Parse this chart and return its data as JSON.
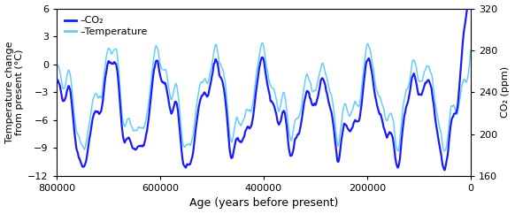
{
  "xlim": [
    800000,
    0
  ],
  "temp_ylim": [
    -12,
    6
  ],
  "co2_ylim": [
    160,
    320
  ],
  "temp_yticks": [
    -12,
    -9,
    -6,
    -3,
    0,
    3,
    6
  ],
  "co2_yticks": [
    160,
    200,
    240,
    280,
    320
  ],
  "xticks": [
    800000,
    600000,
    400000,
    200000,
    0
  ],
  "xticklabels": [
    "800000",
    "600000",
    "400000",
    "200000",
    "0"
  ],
  "xlabel": "Age (years before present)",
  "ylabel_left": "Temperature change\nfrom present (°C)",
  "ylabel_right": "CO₂ (ppm)",
  "legend_co2": "–CO₂",
  "legend_temp": "–Temperature",
  "co2_color": "#1a1aff",
  "temp_color": "#66ccff",
  "linewidth_co2": 1.6,
  "linewidth_temp": 1.1,
  "figsize": [
    5.82,
    2.42
  ],
  "dpi": 100,
  "n_points": 5000
}
